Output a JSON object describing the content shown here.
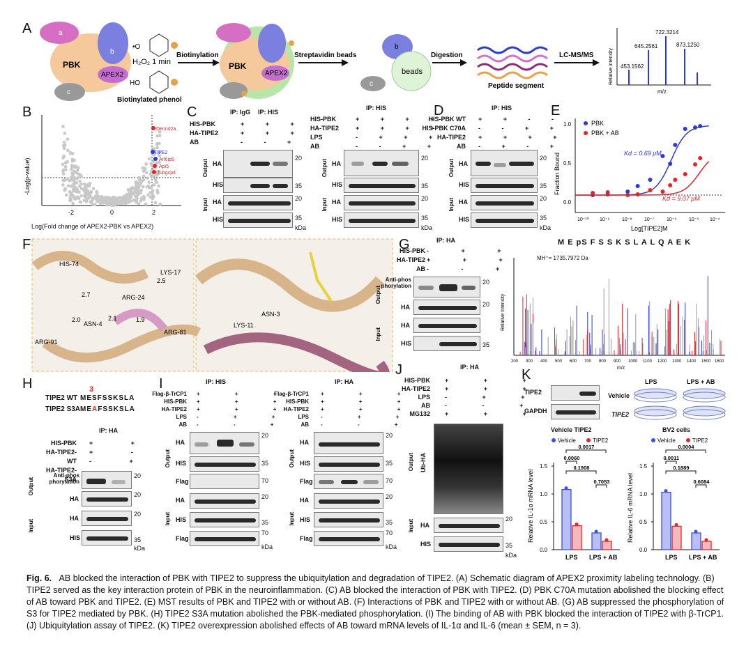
{
  "panels": {
    "A": {
      "label": "A",
      "h2o2": "H₂O₂ 1 min",
      "biotin_phenol": "Biotinylated phenol",
      "step1": "Biotinylation",
      "step2": "Streptavidin beads",
      "step3": "Digestion",
      "step4": "LC-MS/MS",
      "peptide": "Peptide segment",
      "beads": "beads",
      "pbk": "PBK",
      "apex2": "APEX2",
      "a": "a",
      "b": "b",
      "c": "c",
      "ho": "HO",
      "o": "•O",
      "ms_ylabel": "Relative intensity",
      "ms_xlabel": "m/z",
      "ms_peaks": [
        "453.1562",
        "645.2561",
        "722.3214",
        "873.1250"
      ]
    },
    "B": {
      "label": "B",
      "ylabel": "-Log(p-value)",
      "xlabel": "Log(Fold change of APEX2-PBK vs APEX2)",
      "xticks": [
        "-2",
        "0",
        "2"
      ],
      "highlights": [
        "Dennd2a",
        "TIPE2",
        "Arl6ip5",
        "Api5",
        "Tubgcp4"
      ]
    },
    "C": {
      "label": "C",
      "ip_igg": "IP: IgG",
      "ip_his": "IP: HIS",
      "rows_left": [
        "HIS-PBK",
        "HA-TIPE2",
        "AB"
      ],
      "rows_right": [
        "HIS-PBK",
        "HA-TIPE2",
        "LPS",
        "AB"
      ],
      "blot_labels": [
        "HA",
        "HIS",
        "HA",
        "HIS"
      ],
      "groups": [
        "Output",
        "Input"
      ],
      "mw": [
        "20",
        "35",
        "20",
        "35"
      ],
      "kda": "kDa",
      "plus": "+",
      "minus": "-"
    },
    "D": {
      "label": "D",
      "ip": "IP: HIS",
      "rows": [
        "HIS-PBK WT",
        "HIS-PBK C70A",
        "HA-TIPE2",
        "AB"
      ],
      "blot_labels": [
        "HA",
        "HIS",
        "HA",
        "HIS"
      ],
      "groups": [
        "Output",
        "Input"
      ],
      "mw": [
        "20",
        "35",
        "20",
        "35"
      ],
      "kda": "kDa"
    },
    "E": {
      "label": "E",
      "legend": [
        "PBK",
        "PBK + AB"
      ],
      "kd1": "Kd = 0.69 μM",
      "kd2": "Kd = 9.07 μM",
      "ylabel": "Fraction Bound",
      "xlabel": "Log[TIPE2]M",
      "yticks": [
        "0.0",
        "0.5",
        "1.0"
      ],
      "xticks": [
        "10⁻¹⁰",
        "10⁻⁹",
        "10⁻⁸",
        "10⁻⁷",
        "10⁻⁶",
        "10⁻⁵",
        "10⁻⁴"
      ]
    },
    "F": {
      "label": "F",
      "residues_left": [
        "HIS-74",
        "ARG-24",
        "LYS-17",
        "ASN-4",
        "ARG-81",
        "ARG-91"
      ],
      "distances_left": [
        "2.7",
        "2.5",
        "2.0",
        "1.9",
        "2.1"
      ],
      "residues_right": [
        "ASN-3",
        "LYS-11"
      ]
    },
    "G": {
      "label": "G",
      "ip": "IP: HA",
      "rows": [
        "HIS-PBK",
        "HA-TIPE2",
        "AB"
      ],
      "blot_labels": [
        "Anti-phos phorylation",
        "HA",
        "HA",
        "HIS"
      ],
      "groups": [
        "Output",
        "Input"
      ],
      "mw": [
        "20",
        "20",
        "35"
      ],
      "peptide_title": "M E pS F S S K S L A L Q A E K",
      "mh": "MH⁺= 1735.7972 Da",
      "ylabel": "Relative Intensity",
      "xlabel": "m/z",
      "xticks": [
        "200",
        "300",
        "400",
        "500",
        "600",
        "700",
        "800",
        "900",
        "1000",
        "1100",
        "1200",
        "1300",
        "1400",
        "1500",
        "1600"
      ]
    },
    "H": {
      "label": "H",
      "wt": "TIPE2 WT",
      "wt_seq": "MESFSSKSLA",
      "s3a": "TIPE2 S3A",
      "s3a_seq_pre": "ME",
      "s3a_mut": "A",
      "s3a_seq_post": "FSSKSLA",
      "pos": "3",
      "ip": "IP: HA",
      "rows": [
        "HIS-PBK",
        "HA-TIPE2-WT",
        "HA-TIPE2-S3A"
      ],
      "blot_labels": [
        "Anti-phos phorylation",
        "HA",
        "HA",
        "HIS"
      ],
      "groups": [
        "Output",
        "Input"
      ],
      "mw": [
        "20",
        "20",
        "20",
        "35"
      ],
      "kda": "kDa"
    },
    "I": {
      "label": "I",
      "ip_his": "IP: HIS",
      "ip_ha": "IP: HA",
      "rows": [
        "Flag-β-TrCP1",
        "HIS-PBK",
        "HA-TIPE2",
        "LPS",
        "AB"
      ],
      "blot_left": [
        "HA",
        "HIS",
        "Flag",
        "HA",
        "HIS",
        "Flag"
      ],
      "blot_right": [
        "HA",
        "HIS",
        "Flag",
        "HA",
        "HIS",
        "Flag"
      ],
      "groups": [
        "Output",
        "Input"
      ],
      "mw": [
        "20",
        "35",
        "70",
        "20",
        "35",
        "70"
      ],
      "kda": "kDa"
    },
    "J": {
      "label": "J",
      "ip": "IP: HA",
      "rows": [
        "HIS-PBK",
        "HA-TIPE2",
        "LPS",
        "AB",
        "MG132"
      ],
      "blot_labels": [
        "Ub-HA",
        "HA",
        "HIS"
      ],
      "groups": [
        "Output",
        "Input"
      ],
      "mw": [
        "20",
        "35"
      ],
      "kda": "kDa"
    },
    "K": {
      "label": "K",
      "wb": [
        "TIPE2",
        "GAPDH"
      ],
      "dish_cols": [
        "LPS",
        "LPS + AB"
      ],
      "dish_rows": [
        "Vehicle",
        "TIPE2"
      ],
      "cells": "BV2 cells",
      "header_left": "Vehicle TIPE2"
    }
  },
  "chart_data": [
    {
      "type": "scatter",
      "title": "",
      "xlabel": "Log(Fold change of APEX2-PBK vs APEX2)",
      "ylabel": "-Log(p-value)",
      "xlim": [
        -3.2,
        3.5
      ],
      "threshold_x": 1.6,
      "threshold_y_label": "",
      "highlighted": [
        "Dennd2a",
        "TIPE2",
        "Arl6ip5",
        "Api5",
        "Tubgcp4"
      ]
    },
    {
      "type": "line",
      "title": "",
      "xlabel": "Log[TIPE2]M",
      "ylabel": "Fraction Bound",
      "ylim": [
        -0.1,
        1.1
      ],
      "series": [
        {
          "name": "PBK",
          "color": "#2b3bd1",
          "x": [
            -9.3,
            -8.7,
            -7.9,
            -7.5,
            -7.0,
            -6.5,
            -6.2,
            -6.0,
            -5.6,
            -5.2,
            -5.0
          ],
          "y": [
            0.0,
            0.01,
            0.05,
            0.13,
            0.22,
            0.56,
            0.45,
            0.72,
            0.95,
            0.97,
            0.99
          ],
          "kd": "0.69 μM"
        },
        {
          "name": "PBK + AB",
          "color": "#e0262b",
          "x": [
            -9.3,
            -8.7,
            -7.9,
            -7.5,
            -7.0,
            -6.5,
            -6.2,
            -6.0,
            -5.6,
            -5.2,
            -5.0
          ],
          "y": [
            0.03,
            0.04,
            0.0,
            0.01,
            0.07,
            0.05,
            0.14,
            0.22,
            0.3,
            0.44,
            0.53
          ],
          "kd": "9.07 μM"
        }
      ]
    },
    {
      "type": "bar",
      "title": "Vehicle TIPE2",
      "ylabel": "Relative IL-1α mRNA level",
      "categories": [
        "LPS",
        "LPS + AB"
      ],
      "ylim": [
        0,
        1.5
      ],
      "yticks": [
        "0.0",
        "0.5",
        "1.0",
        "1.5"
      ],
      "series": [
        {
          "name": "Vehicle",
          "values": [
            1.08,
            0.3
          ],
          "color": "#3c4fe0"
        },
        {
          "name": "TIPE2",
          "values": [
            0.43,
            0.15
          ],
          "color": "#e0262b"
        }
      ],
      "pvalues": [
        "0.0017",
        "0.0060",
        "0.1908",
        "0.7053"
      ]
    },
    {
      "type": "bar",
      "title": "BV2 cells",
      "ylabel": "Relative IL-6 mRNA level",
      "categories": [
        "LPS",
        "LPS + AB"
      ],
      "ylim": [
        0,
        1.5
      ],
      "yticks": [
        "0.0",
        "0.5",
        "1.0",
        "1.5"
      ],
      "series": [
        {
          "name": "Vehicle",
          "values": [
            1.03,
            0.3
          ],
          "color": "#3c4fe0"
        },
        {
          "name": "TIPE2",
          "values": [
            0.42,
            0.15
          ],
          "color": "#e0262b"
        }
      ],
      "pvalues": [
        "0.0004",
        "0.0011",
        "0.1889",
        "0.6084"
      ]
    }
  ],
  "caption": {
    "fig": "Fig. 6.",
    "text": "AB blocked the interaction of PBK with TIPE2 to suppress the ubiquitylation and degradation of TIPE2. (A) Schematic diagram of APEX2 proximity labeling technology. (B) TIPE2 served as the key interaction protein of PBK in the neuroinflammation. (C) AB blocked the interaction of PBK with TIPE2. (D) PBK C70A mutation abolished the blocking effect of AB toward PBK and TIPE2. (E) MST results of PBK and TIPE2 with or without AB. (F) Interactions of PBK and TIPE2 with or without AB. (G) AB suppressed the phosphorylation of S3 for TIPE2 mediated by PBK. (H) TIPE2 S3A mutation abolished the PBK-mediated phosphorylation. (I) The binding of AB with PBK blocked the interaction of TIPE2 with β-TrCP1. (J) Ubiquitylation assay of TIPE2. (K) TIPE2 overexpression abolished effects of AB toward mRNA levels of IL-1α and IL-6 (mean ± SEM, n = 3)."
  },
  "colors": {
    "blue": "#2b3bd1",
    "red": "#e0262b",
    "orange": "#e6a24a",
    "pbk": "#f6c99c",
    "purple": "#7b7fe0",
    "pink": "#d66fc4",
    "green": "#b8e6a8"
  }
}
